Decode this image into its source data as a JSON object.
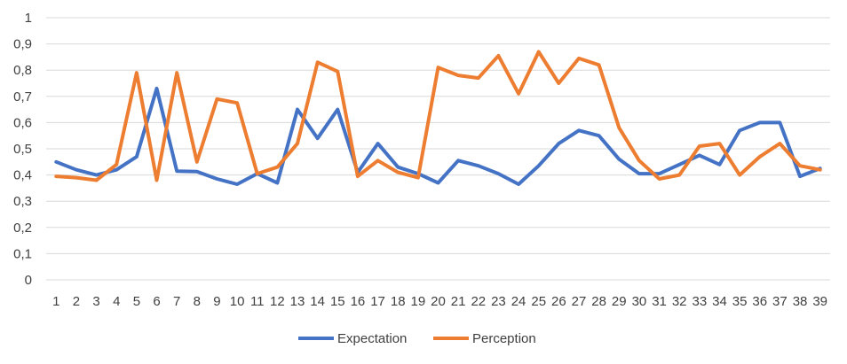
{
  "chart_data": {
    "type": "line",
    "title": "",
    "xlabel": "",
    "ylabel": "",
    "ylim": [
      0,
      1
    ],
    "y_ticks": [
      "0",
      "0,1",
      "0,2",
      "0,3",
      "0,4",
      "0,5",
      "0,6",
      "0,7",
      "0,8",
      "0,9",
      "1"
    ],
    "categories": [
      "1",
      "2",
      "3",
      "4",
      "5",
      "6",
      "7",
      "8",
      "9",
      "10",
      "11",
      "12",
      "13",
      "14",
      "15",
      "16",
      "17",
      "18",
      "19",
      "20",
      "21",
      "22",
      "23",
      "24",
      "25",
      "26",
      "27",
      "28",
      "29",
      "30",
      "31",
      "32",
      "33",
      "34",
      "35",
      "36",
      "37",
      "38",
      "39"
    ],
    "grid": true,
    "legend": "bottom",
    "series": [
      {
        "name": "Expectation",
        "color": "#4472c4",
        "values": [
          0.45,
          0.42,
          0.4,
          0.42,
          0.47,
          0.73,
          0.415,
          0.413,
          0.385,
          0.365,
          0.405,
          0.37,
          0.65,
          0.54,
          0.65,
          0.41,
          0.52,
          0.43,
          0.405,
          0.37,
          0.455,
          0.435,
          0.405,
          0.365,
          0.435,
          0.52,
          0.57,
          0.55,
          0.46,
          0.405,
          0.405,
          0.44,
          0.475,
          0.44,
          0.57,
          0.6,
          0.6,
          0.395,
          0.425
        ]
      },
      {
        "name": "Perception",
        "color": "#ed7d31",
        "values": [
          0.395,
          0.39,
          0.38,
          0.44,
          0.79,
          0.38,
          0.79,
          0.45,
          0.69,
          0.675,
          0.405,
          0.43,
          0.52,
          0.83,
          0.795,
          0.395,
          0.455,
          0.41,
          0.39,
          0.81,
          0.78,
          0.77,
          0.855,
          0.71,
          0.87,
          0.75,
          0.845,
          0.82,
          0.58,
          0.455,
          0.385,
          0.4,
          0.51,
          0.52,
          0.4,
          0.47,
          0.52,
          0.435,
          0.42
        ]
      }
    ]
  }
}
